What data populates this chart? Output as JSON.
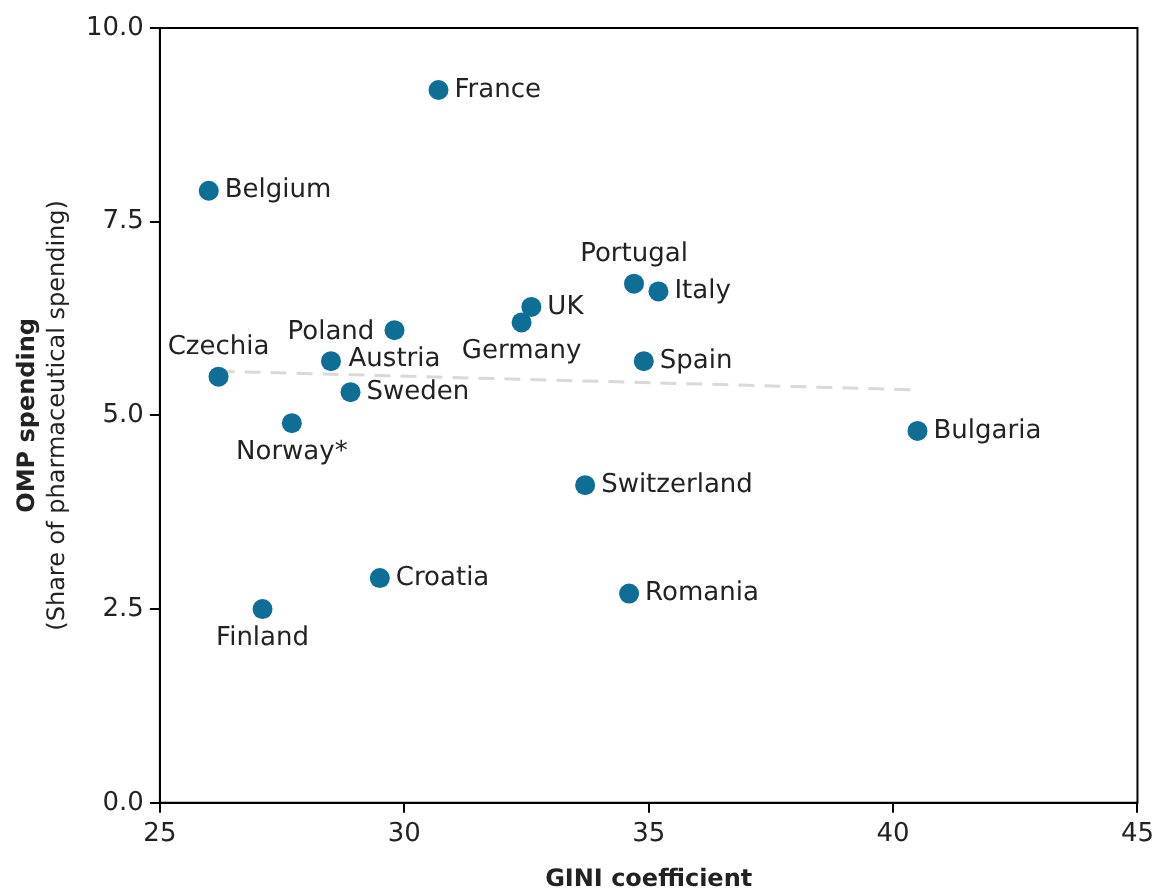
{
  "chart_data": {
    "type": "scatter",
    "xlabel": "GINI coefficient",
    "ylabel": "OMP spending\n(Share of pharmaceutical spending)",
    "xlim": [
      25,
      45
    ],
    "xticks": [
      25,
      30,
      35,
      40,
      45
    ],
    "ylim": [
      0,
      10
    ],
    "yticks": [
      {
        "value": 0,
        "label": "0.0"
      },
      2.5,
      {
        "value": 5,
        "label": "5.0"
      },
      7.5,
      {
        "value": 10,
        "label": "10.0"
      }
    ],
    "grid": false,
    "legend": false,
    "series": [
      {
        "type": "scatter",
        "color": "#0e6e96",
        "marker": "circle",
        "x": [
          30.7,
          26.0,
          26.2,
          28.5,
          29.8,
          28.9,
          27.7,
          32.6,
          32.4,
          34.7,
          35.2,
          34.9,
          40.5,
          33.7,
          29.5,
          34.6,
          27.1
        ],
        "values": [
          9.2,
          7.9,
          5.5,
          5.7,
          6.1,
          5.3,
          4.9,
          6.4,
          6.2,
          6.7,
          6.6,
          5.7,
          4.8,
          4.1,
          2.9,
          2.7,
          2.5
        ]
      },
      {
        "type": "line",
        "color": "#d9d9d9",
        "marker": "none",
        "line_style": "dashed",
        "x": [
          26.2,
          40.5
        ],
        "values": [
          5.57,
          5.33
        ]
      }
    ],
    "annotations": [
      {
        "text": "France",
        "x": 30.7,
        "y": 9.2
      },
      {
        "text": "Belgium",
        "x": 26.0,
        "y": 7.9
      },
      {
        "text": "Czechia",
        "x": 26.2,
        "y": 5.5
      },
      {
        "text": "Poland",
        "x": 28.5,
        "y": 5.7
      },
      {
        "text": "Austria",
        "x": 29.8,
        "y": 6.1
      },
      {
        "text": "Sweden",
        "x": 28.9,
        "y": 5.3
      },
      {
        "text": "Norway*",
        "x": 27.7,
        "y": 4.9
      },
      {
        "text": "UK",
        "x": 32.6,
        "y": 6.4
      },
      {
        "text": "Germany",
        "x": 32.4,
        "y": 6.2
      },
      {
        "text": "Portugal",
        "x": 34.7,
        "y": 6.7
      },
      {
        "text": "Italy",
        "x": 35.2,
        "y": 6.6
      },
      {
        "text": "Spain",
        "x": 34.9,
        "y": 5.7
      },
      {
        "text": "Bulgaria",
        "x": 40.5,
        "y": 4.8
      },
      {
        "text": "Switzerland",
        "x": 33.7,
        "y": 4.1
      },
      {
        "text": "Croatia",
        "x": 29.5,
        "y": 2.9
      },
      {
        "text": "Romania",
        "x": 34.6,
        "y": 2.7
      },
      {
        "text": "Finland",
        "x": 27.1,
        "y": 2.5
      }
    ]
  }
}
